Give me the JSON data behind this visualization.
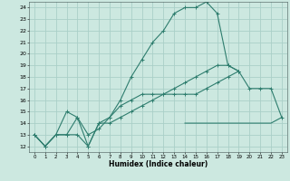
{
  "xlabel": "Humidex (Indice chaleur)",
  "xlim": [
    -0.5,
    23.5
  ],
  "ylim": [
    11.5,
    24.5
  ],
  "yticks": [
    12,
    13,
    14,
    15,
    16,
    17,
    18,
    19,
    20,
    21,
    22,
    23,
    24
  ],
  "xticks": [
    0,
    1,
    2,
    3,
    4,
    5,
    6,
    7,
    8,
    9,
    10,
    11,
    12,
    13,
    14,
    15,
    16,
    17,
    18,
    19,
    20,
    21,
    22,
    23
  ],
  "bg_color": "#cce8e0",
  "grid_color": "#aacfc8",
  "line_color": "#2e7d6e",
  "lines": [
    {
      "y": [
        13,
        12,
        13,
        13,
        14.5,
        12,
        14,
        14,
        14.5,
        15,
        15.5,
        16,
        16.5,
        17,
        17.5,
        18,
        18.5,
        19,
        19,
        18.5,
        17,
        17,
        17,
        14.5
      ],
      "has_markers": true
    },
    {
      "y": [
        13,
        12,
        13,
        15,
        14.5,
        13,
        13.5,
        14.5,
        16,
        18,
        19.5,
        21,
        22,
        23.5,
        24,
        24,
        24.5,
        23.5,
        19,
        18.5,
        null,
        null,
        null,
        null
      ],
      "has_markers": true
    },
    {
      "y": [
        13,
        null,
        null,
        null,
        null,
        null,
        null,
        null,
        null,
        null,
        null,
        null,
        null,
        null,
        14,
        14,
        14,
        14,
        14,
        14,
        14,
        14,
        14,
        14.5
      ],
      "has_markers": false
    },
    {
      "y": [
        13,
        12,
        13,
        13,
        13,
        12,
        14,
        14.5,
        15.5,
        16,
        16.5,
        16.5,
        16.5,
        16.5,
        16.5,
        16.5,
        17,
        17.5,
        18,
        18.5,
        null,
        null,
        null,
        null
      ],
      "has_markers": true
    }
  ]
}
